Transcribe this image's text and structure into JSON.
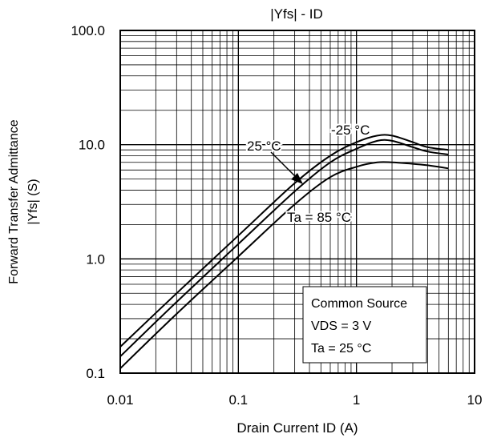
{
  "chart_data": {
    "type": "line",
    "title": "|Yfs| - ID",
    "xlabel": "Drain Current ID (A)",
    "ylabel": [
      "Forward Transfer Admittance",
      "|Yfs|  (S)"
    ],
    "xscale": "log",
    "yscale": "log",
    "xlim": [
      0.01,
      10
    ],
    "ylim": [
      0.1,
      100
    ],
    "grid": true,
    "xticks": [
      {
        "value": 0.01,
        "label": "0.01"
      },
      {
        "value": 0.1,
        "label": "0.1"
      },
      {
        "value": 1,
        "label": "1"
      },
      {
        "value": 10,
        "label": "10"
      }
    ],
    "yticks": [
      {
        "value": 0.1,
        "label": "0.1"
      },
      {
        "value": 1,
        "label": "1.0"
      },
      {
        "value": 10,
        "label": "10.0"
      },
      {
        "value": 100,
        "label": "100.0"
      }
    ],
    "series": [
      {
        "name": "-25 °C",
        "x": [
          0.01,
          0.03,
          0.1,
          0.3,
          0.6,
          1.0,
          1.5,
          2.0,
          3.0,
          4.0,
          6.0
        ],
        "y": [
          0.17,
          0.5,
          1.6,
          4.6,
          8.0,
          10.5,
          12.0,
          12.0,
          10.5,
          9.5,
          9.0
        ]
      },
      {
        "name": "25 °C",
        "x": [
          0.01,
          0.03,
          0.1,
          0.3,
          0.6,
          1.0,
          1.5,
          2.0,
          3.0,
          4.0,
          6.0
        ],
        "y": [
          0.14,
          0.42,
          1.35,
          3.9,
          7.0,
          9.2,
          10.8,
          10.8,
          9.5,
          8.7,
          8.2
        ]
      },
      {
        "name": "Ta = 85 °C",
        "x": [
          0.01,
          0.03,
          0.1,
          0.3,
          0.6,
          1.0,
          1.5,
          2.0,
          3.0,
          4.0,
          6.0
        ],
        "y": [
          0.11,
          0.33,
          1.05,
          3.0,
          5.2,
          6.4,
          7.0,
          7.0,
          6.8,
          6.6,
          6.2
        ]
      }
    ],
    "annotations": {
      "label_neg25": "-25 °C",
      "label_25": "25 °C",
      "label_85": "Ta = 85 °C"
    },
    "legend_box": {
      "position": "bottom-right",
      "lines": [
        "Common Source",
        "VDS = 3 V",
        "Ta = 25 °C"
      ]
    }
  }
}
